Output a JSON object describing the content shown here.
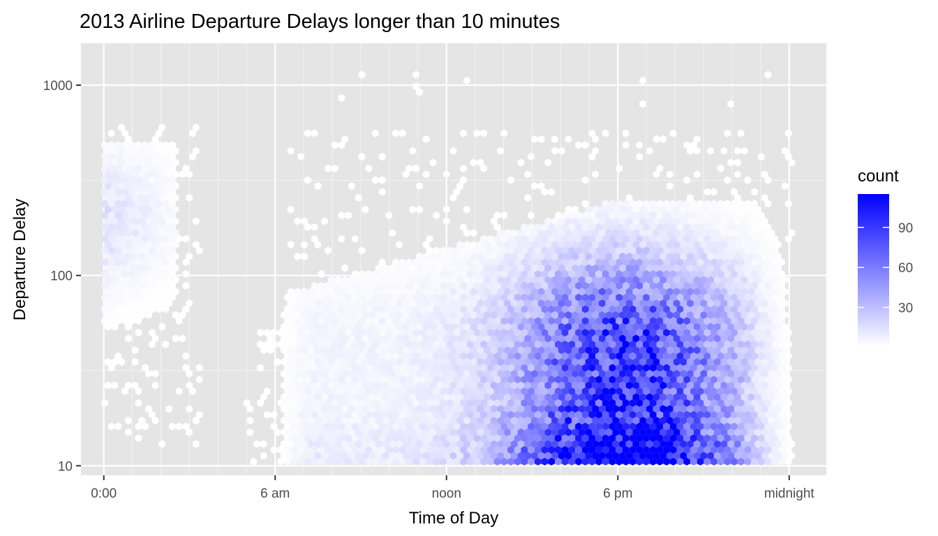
{
  "chart_data": {
    "type": "heatmap",
    "title": "2013 Airline Departure Delays longer than 10 minutes",
    "xlabel": "Time of Day",
    "ylabel": "Departure Delay",
    "xlim": [
      -0.8,
      25.3
    ],
    "ylim_log10": [
      0.95,
      3.22
    ],
    "y_scale": "log10",
    "x_ticks": [
      {
        "value": 0,
        "label": "0:00"
      },
      {
        "value": 6,
        "label": "6 am"
      },
      {
        "value": 12,
        "label": "noon"
      },
      {
        "value": 18,
        "label": "6 pm"
      },
      {
        "value": 24,
        "label": "midnight"
      }
    ],
    "x_minor_ticks": [
      1,
      2,
      3,
      4,
      5,
      7,
      8,
      9,
      10,
      11,
      13,
      14,
      15,
      16,
      17,
      19,
      20,
      21,
      22,
      23
    ],
    "y_ticks": [
      {
        "value": 10,
        "label": "10"
      },
      {
        "value": 100,
        "label": "100"
      },
      {
        "value": 1000,
        "label": "1000"
      }
    ],
    "y_minor_ticks": [
      31.6,
      316
    ],
    "grid": true,
    "legend": {
      "title": "count",
      "position": "right",
      "low_color": "#ffffff",
      "high_color": "#0000ff",
      "range": [
        1,
        115
      ],
      "breaks": [
        30,
        60,
        90
      ]
    },
    "density_regions": [
      {
        "x_range": [
          0,
          2.5
        ],
        "log10_y_range": [
          1.3,
          2.65
        ],
        "peak": 14
      },
      {
        "x_range": [
          6.2,
          24.2
        ],
        "log10_y_range": [
          1.0,
          2.5
        ],
        "peak": 60
      },
      {
        "x_range": [
          15,
          21.5
        ],
        "log10_y_range": [
          1.0,
          1.9
        ],
        "peak": 115
      }
    ]
  }
}
